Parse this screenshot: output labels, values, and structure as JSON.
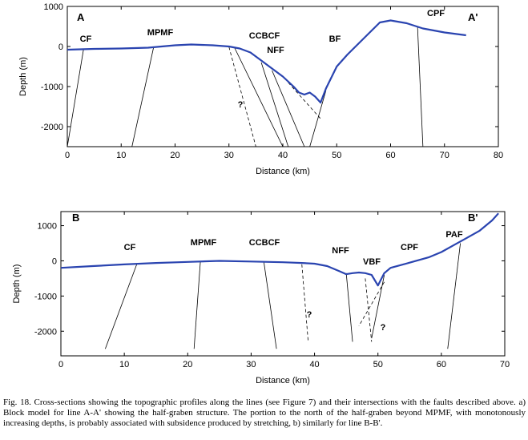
{
  "colors": {
    "profile": "#2a44b0",
    "fault": "#000000",
    "axis": "#000000"
  },
  "chart_data": [
    {
      "type": "line",
      "panel_label": "A",
      "panel_label_end": "A'",
      "xlabel": "Distance (km)",
      "ylabel": "Depth (m)",
      "xlim": [
        0,
        80
      ],
      "ylim": [
        -2500,
        1000
      ],
      "xticks": [
        0,
        10,
        20,
        30,
        40,
        50,
        60,
        70,
        80
      ],
      "yticks": [
        1000,
        0,
        -1000,
        -2000
      ],
      "profile": {
        "x": [
          0,
          5,
          10,
          15,
          20,
          23,
          27,
          30,
          32,
          34,
          36,
          38,
          40,
          42,
          43,
          44,
          45,
          46,
          47,
          48,
          50,
          52,
          55,
          58,
          60,
          63,
          66,
          70,
          74
        ],
        "y": [
          -80,
          -60,
          -50,
          -30,
          30,
          50,
          30,
          0,
          -50,
          -150,
          -350,
          -550,
          -750,
          -1000,
          -1150,
          -1200,
          -1150,
          -1250,
          -1400,
          -1050,
          -500,
          -200,
          200,
          600,
          650,
          580,
          450,
          350,
          280
        ]
      },
      "faults": [
        {
          "label": "CF",
          "top": [
            3,
            -80
          ],
          "bottom": [
            0,
            -2500
          ],
          "style": "solid"
        },
        {
          "label": "MPMF",
          "top": [
            16,
            -30
          ],
          "bottom": [
            12,
            -2500
          ],
          "style": "solid"
        },
        {
          "label": "CCBCF",
          "top": [
            31,
            -20
          ],
          "bottom": [
            40,
            -2500
          ],
          "style": "solid"
        },
        {
          "label": "",
          "top": [
            30,
            -10
          ],
          "bottom": [
            35,
            -2500
          ],
          "style": "dashed"
        },
        {
          "label": "NFF",
          "top": [
            36,
            -400
          ],
          "bottom": [
            41,
            -2500
          ],
          "style": "solid"
        },
        {
          "label": "",
          "top": [
            38,
            -600
          ],
          "bottom": [
            44,
            -2500
          ],
          "style": "solid"
        },
        {
          "label": "",
          "top": [
            41,
            -900
          ],
          "bottom": [
            47,
            -1800
          ],
          "style": "dashed"
        },
        {
          "label": "BF",
          "top": [
            48,
            -1100
          ],
          "bottom": [
            45,
            -2500
          ],
          "style": "solid"
        },
        {
          "label": "CPF",
          "top": [
            65,
            500
          ],
          "bottom": [
            66,
            -2500
          ],
          "style": "solid"
        }
      ],
      "question_marks": [
        "?"
      ]
    },
    {
      "type": "line",
      "panel_label": "B",
      "panel_label_end": "B'",
      "xlabel": "Distance (km)",
      "ylabel": "Depth (m)",
      "xlim": [
        0,
        70
      ],
      "ylim": [
        -2700,
        1400
      ],
      "xticks": [
        0,
        10,
        20,
        30,
        40,
        50,
        60,
        70
      ],
      "yticks": [
        1000,
        0,
        -1000,
        -2000
      ],
      "profile": {
        "x": [
          0,
          5,
          10,
          15,
          20,
          25,
          30,
          35,
          38,
          40,
          42,
          44,
          45,
          46,
          47,
          48,
          49,
          50,
          51,
          52,
          55,
          58,
          60,
          62,
          64,
          66,
          68,
          69
        ],
        "y": [
          -200,
          -150,
          -100,
          -60,
          -30,
          0,
          -20,
          -40,
          -60,
          -80,
          -150,
          -300,
          -380,
          -350,
          -330,
          -350,
          -400,
          -700,
          -350,
          -200,
          -50,
          100,
          250,
          450,
          650,
          850,
          1150,
          1350
        ]
      },
      "faults": [
        {
          "label": "CF",
          "top": [
            12,
            -80
          ],
          "bottom": [
            7,
            -2500
          ],
          "style": "solid"
        },
        {
          "label": "MPMF",
          "top": [
            22,
            -20
          ],
          "bottom": [
            21,
            -2500
          ],
          "style": "solid"
        },
        {
          "label": "CCBCF",
          "top": [
            32,
            -20
          ],
          "bottom": [
            34,
            -2500
          ],
          "style": "solid"
        },
        {
          "label": "",
          "top": [
            38,
            -100
          ],
          "bottom": [
            39,
            -2300
          ],
          "style": "dashed"
        },
        {
          "label": "NFF",
          "top": [
            45,
            -350
          ],
          "bottom": [
            46,
            -2300
          ],
          "style": "solid"
        },
        {
          "label": "VBF",
          "top": [
            48,
            -500
          ],
          "bottom": [
            49,
            -2300
          ],
          "style": "dashed"
        },
        {
          "label": "",
          "top": [
            51,
            -600
          ],
          "bottom": [
            47,
            -1850
          ],
          "style": "dashed"
        },
        {
          "label": "CPF",
          "top": [
            51,
            -400
          ],
          "bottom": [
            49,
            -2200
          ],
          "style": "solid"
        },
        {
          "label": "PAF",
          "top": [
            63,
            500
          ],
          "bottom": [
            61,
            -2500
          ],
          "style": "solid"
        }
      ],
      "question_marks": [
        "?",
        "?"
      ]
    }
  ],
  "caption": "Fig. 18. Cross-sections showing the topographic profiles along the lines (see Figure 7) and their intersections with the faults described above. a) Block model for line A-A' showing the half-graben structure. The portion to the north of the half-graben beyond MPMF, with monotonously increasing depths, is probably associated with subsidence produced by stretching, b) similarly for line B-B'."
}
